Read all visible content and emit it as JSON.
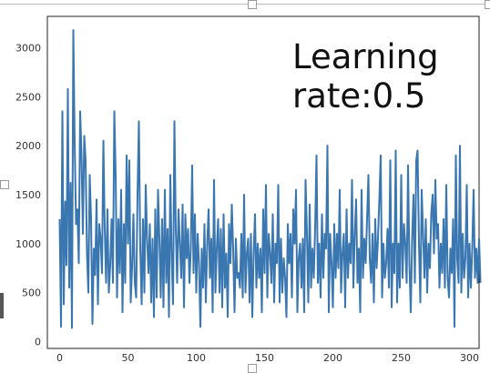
{
  "chart_data": {
    "type": "line",
    "title": "",
    "xlabel": "",
    "ylabel": "",
    "annotation": [
      "Learning",
      "rate:0.5"
    ],
    "xlim": [
      -9,
      307
    ],
    "ylim": [
      -70,
      3320
    ],
    "x_ticks": [
      0,
      50,
      100,
      150,
      200,
      250,
      300
    ],
    "y_ticks": [
      0,
      500,
      1000,
      1500,
      2000,
      2500,
      3000
    ],
    "grid": false,
    "legend": "none",
    "series": [
      {
        "color": "#3a76b0",
        "x_start": 0,
        "x_step": 1,
        "values": [
          1250,
          150,
          2350,
          380,
          1430,
          780,
          2580,
          550,
          1620,
          140,
          3180,
          2020,
          1200,
          1350,
          800,
          2350,
          1900,
          1100,
          2100,
          1850,
          900,
          500,
          1700,
          1250,
          180,
          950,
          680,
          1450,
          380,
          1200,
          1050,
          700,
          2050,
          1150,
          600,
          1350,
          500,
          780,
          1250,
          600,
          2350,
          1700,
          450,
          1250,
          700,
          1550,
          300,
          1200,
          600,
          1900,
          1000,
          1850,
          400,
          750,
          1300,
          600,
          450,
          1500,
          2250,
          950,
          380,
          1250,
          500,
          1600,
          1050,
          700,
          1200,
          400,
          1050,
          250,
          1350,
          450,
          1550,
          1050,
          450,
          1250,
          350,
          1550,
          600,
          1150,
          250,
          1700,
          850,
          380,
          2250,
          1150,
          600,
          1350,
          1000,
          650,
          1400,
          350,
          1300,
          850,
          1150,
          600,
          950,
          1800,
          700,
          1300,
          500,
          1100,
          800,
          150,
          950,
          550,
          1200,
          400,
          1000,
          1350,
          650,
          1050,
          300,
          1650,
          500,
          950,
          1250,
          500,
          1150,
          350,
          1300,
          550,
          900,
          250,
          1200,
          800,
          1400,
          950,
          300,
          1050,
          650,
          700,
          550,
          1100,
          450,
          1500,
          500,
          900,
          1050,
          400,
          1100,
          250,
          900,
          1300,
          550,
          1000,
          650,
          950,
          300,
          1350,
          700,
          1600,
          450,
          1100,
          900,
          600,
          1300,
          400,
          1000,
          800,
          1600,
          400,
          1050,
          500,
          850,
          650,
          250,
          1200,
          800,
          1100,
          450,
          1350,
          1000,
          1550,
          300,
          850,
          1000,
          550,
          1050,
          300,
          1650,
          1100,
          400,
          1400,
          550,
          950,
          650,
          1150,
          1900,
          600,
          1000,
          450,
          1300,
          650,
          1100,
          950,
          2000,
          300,
          1100,
          800,
          350,
          1200,
          650,
          1100,
          750,
          1550,
          500,
          900,
          1100,
          350,
          1350,
          650,
          1000,
          800,
          1650,
          550,
          1100,
          1450,
          600,
          950,
          300,
          1550,
          650,
          1050,
          800,
          1250,
          1700,
          850,
          600,
          1100,
          400,
          1250,
          750,
          1050,
          1450,
          1900,
          450,
          1000,
          650,
          800,
          1150,
          550,
          1850,
          350,
          1000,
          700,
          1950,
          400,
          1000,
          550,
          1700,
          650,
          1200,
          1000,
          600,
          1800,
          800,
          300,
          1050,
          1500,
          600,
          1850,
          1950,
          1000,
          400,
          1550,
          1100,
          650,
          1250,
          500,
          1000,
          750,
          1300,
          1500,
          900,
          1650,
          1050,
          1200,
          550,
          1000,
          700,
          1250,
          550,
          1600,
          650,
          450,
          950,
          700,
          1250,
          150,
          1900,
          850,
          600,
          2000,
          500,
          1100,
          650,
          850,
          1600,
          450,
          1000,
          550,
          950,
          1550,
          650,
          950,
          600,
          1050,
          600
        ]
      }
    ]
  }
}
